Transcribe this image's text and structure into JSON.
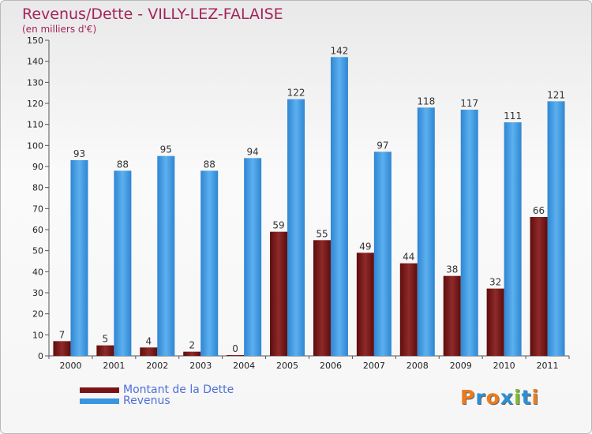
{
  "chart_data": {
    "type": "bar",
    "title": "Revenus/Dette - VILLY-LEZ-FALAISE",
    "subtitle": "(en milliers d'€)",
    "categories": [
      "2000",
      "2001",
      "2002",
      "2003",
      "2004",
      "2005",
      "2006",
      "2007",
      "2008",
      "2009",
      "2010",
      "2011"
    ],
    "series": [
      {
        "name": "Montant de la Dette",
        "color": "#7a1414",
        "values": [
          7,
          5,
          4,
          2,
          0,
          59,
          55,
          49,
          44,
          38,
          32,
          66
        ]
      },
      {
        "name": "Revenus",
        "color": "#3a96de",
        "values": [
          93,
          88,
          95,
          88,
          94,
          122,
          142,
          97,
          118,
          117,
          111,
          121
        ]
      }
    ],
    "ylim": [
      0,
      150
    ],
    "yticks": [
      0,
      10,
      20,
      30,
      40,
      50,
      60,
      70,
      80,
      90,
      100,
      110,
      120,
      130,
      140,
      150
    ],
    "grid": false,
    "legend_position": "bottom-left"
  },
  "logo": {
    "text": "Proxiti",
    "letters": [
      "P",
      "r",
      "o",
      "x",
      "i",
      "t",
      "i"
    ],
    "colors": [
      "#f07b1a",
      "#2b8fd6",
      "#f07b1a",
      "#2b8fd6",
      "#7fbf2a",
      "#2b8fd6",
      "#f07b1a"
    ]
  }
}
